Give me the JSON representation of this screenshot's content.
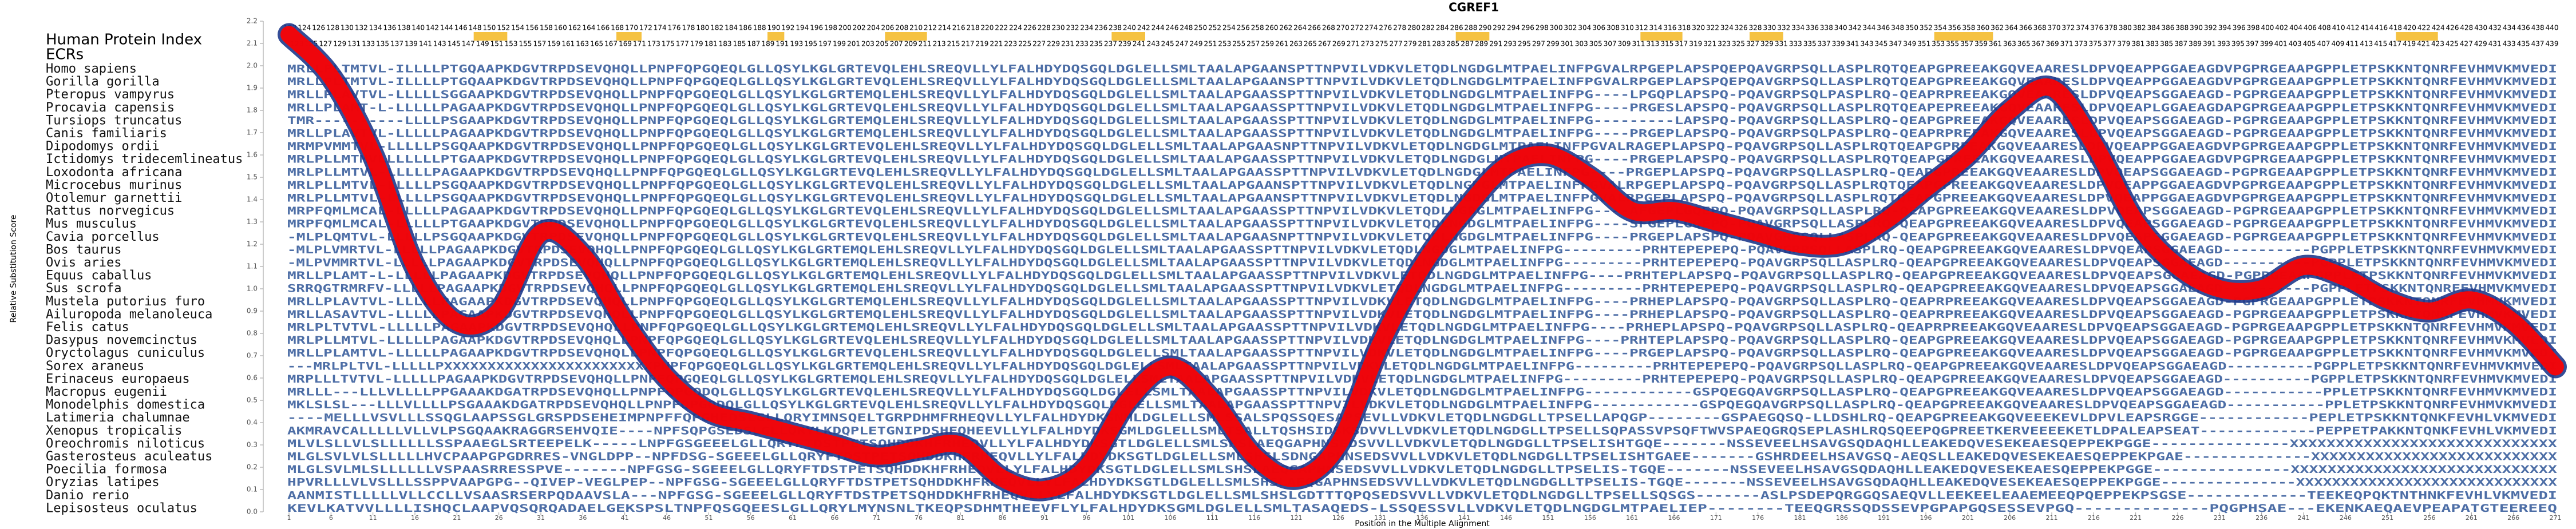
{
  "chart_data": {
    "type": "line",
    "title": "CGREF1",
    "x_label": "Position in the Multiple Alignment",
    "y_label": "Relative Substitution Score",
    "index_title": "Human Protein Index",
    "ecr_title": "ECRs",
    "ecr_color": "#f5c242",
    "ecr_regions": [
      [
        23,
        27
      ],
      [
        40,
        43
      ],
      [
        58,
        60
      ],
      [
        72,
        77
      ],
      [
        99,
        103
      ],
      [
        140,
        144
      ],
      [
        162,
        167
      ],
      [
        175,
        179
      ],
      [
        197,
        204
      ],
      [
        252,
        257
      ]
    ],
    "index_row_top": [
      122,
      124,
      126,
      128,
      130,
      132,
      134,
      136,
      138,
      140,
      142,
      144,
      146,
      148,
      150,
      152,
      154,
      156,
      158,
      160,
      162,
      164,
      166,
      168,
      170,
      172,
      174,
      176,
      178,
      180,
      182,
      184,
      186,
      188,
      190,
      192,
      194,
      196,
      198,
      200,
      202,
      204,
      206,
      208,
      210,
      212,
      214,
      216,
      218,
      220,
      222,
      224,
      226,
      228,
      230,
      232,
      234,
      236,
      238,
      240,
      242,
      244,
      246,
      248,
      250,
      252,
      254,
      256,
      258,
      260,
      262,
      264,
      266,
      268,
      270,
      272,
      274,
      276,
      278,
      280,
      282,
      284,
      286,
      288,
      290,
      292,
      294,
      296,
      298,
      300,
      302,
      304,
      306,
      308,
      310,
      312,
      314,
      316,
      318,
      320,
      322,
      324,
      326,
      328,
      330,
      332,
      334,
      336,
      338,
      340,
      342,
      344,
      346,
      348,
      350,
      352,
      354,
      356,
      358,
      360,
      362,
      364,
      366,
      368,
      370,
      372,
      374,
      376,
      378,
      380,
      382,
      384,
      386,
      388,
      390,
      392,
      394,
      396,
      398,
      400,
      402,
      404,
      406,
      408,
      410,
      412,
      414,
      416,
      418,
      420,
      422,
      424,
      426,
      428,
      430,
      432,
      434,
      436,
      438,
      440
    ],
    "index_row_bottom": [
      123,
      125,
      127,
      129,
      131,
      133,
      135,
      137,
      139,
      141,
      143,
      145,
      147,
      149,
      151,
      153,
      155,
      157,
      159,
      161,
      163,
      165,
      167,
      169,
      171,
      173,
      175,
      177,
      179,
      181,
      183,
      185,
      187,
      189,
      191,
      193,
      195,
      197,
      199,
      201,
      203,
      205,
      207,
      209,
      211,
      213,
      215,
      217,
      219,
      221,
      223,
      225,
      227,
      229,
      231,
      233,
      235,
      237,
      239,
      241,
      243,
      245,
      247,
      249,
      251,
      253,
      255,
      257,
      259,
      261,
      263,
      265,
      267,
      269,
      271,
      273,
      275,
      277,
      279,
      281,
      283,
      285,
      287,
      289,
      291,
      293,
      295,
      297,
      299,
      301,
      303,
      305,
      307,
      309,
      311,
      313,
      315,
      317,
      319,
      321,
      323,
      325,
      327,
      329,
      331,
      333,
      335,
      337,
      339,
      341,
      343,
      345,
      347,
      349,
      351,
      353,
      355,
      357,
      359,
      361,
      363,
      365,
      367,
      369,
      371,
      373,
      375,
      377,
      379,
      381,
      383,
      385,
      387,
      389,
      391,
      393,
      395,
      397,
      399,
      401,
      403,
      405,
      407,
      409,
      411,
      413,
      415,
      417,
      419,
      421,
      423,
      425,
      427,
      429,
      431,
      433,
      435,
      437,
      439
    ],
    "sequence_color": "#2f5597",
    "species": [
      {
        "name": "Homo sapiens",
        "sequence": "MRLLPLTMTVL-ILLLLPTGQAAPKDGVTRPDSEVQHQLLPNPFQPGQEQLGLLQSYLKGLGRTEVQLEHLSREQVLLYLFALHDYDQSGQLDGLELLSMLTAALAPGAANSPTTNPVILVDKVLETQDLNGDGLMTPAELINFPGVALRPGEPLAPSPQEPQAVGRPSQLLASPLRQTQEAPGPREEAKGQVEAARESLDPVQEAPPGGAEAGDVPGPRGEAAPGPPLETPSKKNTQNRFEVHMVKMVEDI"
      },
      {
        "name": "Gorilla gorilla",
        "sequence": "MRLLPLTMTVL-ILLLLPTGQAAPKDGVTRPDSEVQHQLLPNPFQPGQEQLGLLQSYLKGLGRTEVQLEHLSREQVLLYLFALHDYDQSGQLDGLELLSMLTAALAPGAANSPTTNPVILVDKVLETQDLNGDGLMTPAELINFPGVALRPGEPLAPSPQEPQAVGRPSQLLASPLRQTQEAPGPREEAKGQVEAARESLDPVQEAPPGGAEAGDVPGPRGEAAPGPPLETPSKKNTQNRFEVHMVKMVEDI"
      },
      {
        "name": "Pteropus vampyrus",
        "sequence": "MRLLPLAVTVL-LLLLLSGGAAPKDGVTRPDSEVQHQLLPNPFQPGQEQLGLLQSYLKGLGRTEMQLEHLSREQVLLYLFALHDYDQSGQLDGLELLSMLTAALAPGAASSPTTNPVILVDKVLETQDLNGDGLMTPAELINFPG----LPGQPLAPSPQ-PQAVGRPSQLPASPLRQ-QEAPRPREEAKGQVEAARESLDPVQEAPSGGAEAGD-PGPRGEAAPGPPLETPSKKNTQNRFEVHMVKMVEDI"
      },
      {
        "name": "Procavia capensis",
        "sequence": "MRLLPLAMT-L-LLLLLPAGAAPKDGVTRPDSEVQHQLLPNPFQPGQEQLGLLQSYLKGLGRTEVQLEHLSREQVLLYLFALHDYDQSGQLDGLELLSMLTAALAPGAASSPTTNPVILVDKVLETQDLNGDGLMTPAELINFPG----PRGESLAPSPQ-PQAVGRPSQLLASPLRQTQEAPEPREEAKGQVEAARESLDPVQEAPLGGAEAGDAPGPRGEAAPGPPLETPSKKNTQNRFEVHMVKMVEDI"
      },
      {
        "name": "Tursiops truncatus",
        "sequence": "TMR----------LLLLPSGAAPKDGVTRPDSEVQHQLLPNPFQPGQEQLGLLQSYLKGLGRTEMQLEHLSREQVLLYLFALHDYDQSGQLDGLELLSMLTAALAPGAASSPTTNPVILVDKVLETQDLNGDGLMTPAELINFPG---------LAPSPQ-PQAVGRPSQLLASPLRQ-QEAPGPREEAKGQVEAARESLDPVQEAPSGGAEAGD-PGPRGEAAPGPPLETPSKKNTQNRFEVHMVKMVEDI"
      },
      {
        "name": "Canis familiaris",
        "sequence": "MRLLPLAVTVL-LLLLLPAGAAPKDGVTRPDSEVQHQLLPNPFQPGQEQLGLLQSYLKGLGRTEMQLEHLSREQVLLYLFALHDYDQSGQLDGLELLSMLTAALAPGAASSPTTNPVILVDKVLETQDLNGDGLMTPAELINFPG----PRGEPLAPSPQ-PQAVGRPSQLPASPLRQ-QEAPRPREEAKGQVEAARESLDPVQEAPSGGAEAGD-PGPRGEAAPGPPLETPSKKNTQNRFEVHMVKMVEDI"
      },
      {
        "name": "Dipodomys ordii",
        "sequence": "MRMPVMMTVL-LLLLLPSGQAAPKDGVTRPDSEVQHQLLPNPFQPGQEQLGLLQSYLKGLGRTEVQLEHLSREQVLLYLFALHDYDQSGQLDGLELLSMLTAALAPGAASNPTTNPVILVDKVLETQDLNGDGLMTPAELINFPGVALRAGEPLAPSPQ-PQAVGRPSQLLASPLRQTQEAPGPREEAKGQVEAARESLDPVQEAPPGGAEAGDVPGPRGEAAPGPPLETPSKKNTQNRFEVHMVKMVEDI"
      },
      {
        "name": "Ictidomys tridecemlineatus",
        "sequence": "MRLPLLMTMVLLLLLLLPTGAAPKDGVTRPDSEVQHQLLPNPFQPGQEQLGLLQSYLKGLGRTEVQLEHLSREQVLLYLFALHDYDQSGQLDGLELLSMLTAALAPGAASSPTTNPVILVDKVLETQDLNGDGLMTPAELINFPG----PRGEPLAPSPQ-PQAVGRPSQLLASPLRQTQEAPGPREEAKGQVEAARESLDPVQEAPPGGAEAGDVPGPRGEAAPGPPLETPSKKNTQNRFEVHMVKMVEDI"
      },
      {
        "name": "Loxodonta africana",
        "sequence": "MRLPLLMTVL-LLLLLPAGAAPKDGVTRPDSEVQHQLLPNPFQPGQEQLGLLQSYLKGLGRTEVQLEHLSREQVLLYLFALHDYDQSGQLDGLELLSMLTAALAPGAASSPTTNPVILVDKVLETQDLNGDGLMTPAELINFPG----PRGEPLAPSPQ-PQAVGRPSQLLASPLRQ-QEAPGPREEAKGQVEAARESLDPVQEAPSGGAEAGD-PGPRGEAAPGPPLETPSKKNTQNRFEVHMVKMVEDI"
      },
      {
        "name": "Microcebus murinus",
        "sequence": "MRLPLLMTVL-LLLLLPSGQAAPKDGVTRPDSEVQHQLLPNPFQPGQEQLGLLQSYLKGLGRTEVQLEHLSREQVLLYLFALHDYDQSGQLDGLELLSMLTAALAPGAANSPTTNPVILVDKVLETQDLNGDGLMTPAELINFPGVALRPGEPLAPSPQ-PQAVGRPSQLLASPLRQTQEAPGPREEAKGQVEAARESLDPVQEAPPGGAEAGDVPGPRGEAAPGPPLETPSKKNTQNRFEVHMVKMVEDI"
      },
      {
        "name": "Otolemur garnettii",
        "sequence": "MRLPLLMTVL-LLLLLPSGQAAPKDGVTRPDSEVQHQLLPNPFQPGQEQLGLLQSYLKGLGRTEVQLEHLSREQVLLYLFALHDYDQSGQLDGLELLSMLTAALAPGAANSPTTNPVILVDKVLETQDLNGDGLMTPAELINFPGVALRPGEPLAPSPQ-PQAVGRPSQLLASPLRQTQEAPGPREEAKGQVEAARESLDPVQEAPPGGAEAGDVPGPRGEAAPGPPLETPSKKNTQNRFEVHMVKMVEDI"
      },
      {
        "name": "Rattus norvegicus",
        "sequence": "MRPFQMLMCAL-LLLLLPAGAAPKDGVTRPDSEVQHQLLPNPFQPGQEQLGLLQSYLKGLGRTEVQLEHLSREQVLLYLFALHDYDQSGQLDGLELLSMLTAALAPGAASSPTTNPVILVDKVLETQDLNGDGLMTPAELINFPG----AFGEPLGQEPQ-PQAVGRPSQLLASPLRQ-QEAPGPREEAKGQVEAARESLDPVQEAPSGGAEAGD-PGPRGEAAPGPPLETPSKKNTQNRFEVHMVKMVEDI"
      },
      {
        "name": "Mus musculus",
        "sequence": "MRPFQMLMCAL-LLLLLPTGAAPKDGVTRPDSEVQHQLLPNPFQPGQEQLGLLQSYLKGLGRTEVQLEHLSREQVLLYLFALHDYDQSGQLDGLELLSMLTAALAPGAASSPTTNPVILVDKVLETQDLNGDGLMTPAELINFPG----SFGEPLGQEPQ-PQAVGRPSQLLASPLRQ-QEAPGPREEAKGQVEAARESLDPVQEAPSGGAEAGD-PGPRGEAAPGPPLETPSKKNTQNRFEVHMVKMVEDI"
      },
      {
        "name": "Cavia porcellus",
        "sequence": "-MLPLQMTVL-LLLLLPSGQAAPKDGVTRPDSEVQHQLLPNPFQPGQEQLGLLQSYLKGLGRTEVQLEHLSREQVLLYLFALHDYDQSGQLDGLELLSMLTAALAPGAASNPTTNPVILVDKVLETQDLNGDGLMTPAELINFPG----PRGEPLAPSPQ-PQAVGRPSQLLASPLRQ-QEAPGPREEAKGQVEAARESLDPVQEAPSGGAEAGD-PGPRGEAAPGPPLETPSKKNTQNRFEVHMVKMVEDI"
      },
      {
        "name": "Bos taurus",
        "sequence": "-MLPLVMRTVL-LLLLLPAGAAPKDGVTRPDSEVQHQLLPNPFQPGQEQLGLLQSYLKGLGRTEMQLEHLSREQVLLYLFALHDYDQSGQLDGLELLSMLTAALAPGAASSPTTNPVILVDKVLETQDLNGDGLMTPAELINFPG---------PRHTEPEPEPQ-PQAVGRPSQLLASPLRQ-QEAPGPREEAKGQVEAARESLDPVQEAPSGGAEAGD----------PGPPLETPSKKNTQNRFEVHMVKMVEDI"
      },
      {
        "name": "Ovis aries",
        "sequence": "-MLPVMMRTVL-LLLLLPAGAAPKDGVTRPDSEVQHQLLPNPFQPGQEQLGLLQSYLKGLGRTEMQLEHLSREQVLLYLFALHDYDQSGQLDGLELLSMLTAALAPGAASSPTTNPVILVDKVLETQDLNGDGLMTPAELINFPG---------PRHTEPEPEPQ-PQAVGRPSQLLASPLRQ-QEAPGPREEAKGQVEAARESLDPVQEAPSGGAEAGD----------PGPPLETPSKKNTQNRFEVHMVKMVEDI"
      },
      {
        "name": "Equus caballus",
        "sequence": "MRLLPLAMT-L-LLLLLPAGAAPKDGVTRPDSEVQHQLLPNPFQPGQEQLGLLQSYLKGLGRTEMQLEHLSREQVLLYLFALHDYDQSGQLDGLELLSMLTAALAPGAASSPTTNPVILVDKVLETQDLNGDGLMTPAELINFPG----PRHTEPLAPSPQ-PQAVGRPSQLLASPLRQ-QEAPGPREEAKGQVEAARESLDPVQEAPSGGAEAGD-PGPRGEAAPGPPLETPSKKNTQNRFEVHMVKMVEDI"
      },
      {
        "name": "Sus scrofa",
        "sequence": "SRRQGTRMRFV-LLLLLPAGAAPKDGVTRPDSEVQHQLLPNPFQPGQEQLGLLQSYLKGLGRTEMQLEHLSREQVLLYLFALHDYDQSGQLDGLELLSMLTAALAPGAASSPTTNPVILVDKVLETQDLNGDGLMTPAELINFPG---------PRHTEPEPEPQ-PQAVGRPSQLLASPLRQ-QEAPGPREEAKGQVEAARESLDPVQEAPSGGAEAGD----------PGPPLETPSKKNTQNRFEVHMVKMVEDI"
      },
      {
        "name": "Mustela putorius furo",
        "sequence": "MRLLPLAVTVL-LLLLLPAGAAPKDGVTRPDSEVQHQLLPNPFQPGQEQLGLLQSYLKGLGRTEMQLEHLSREQVLLYLFALHDYDQSGQLDGLELLSMLTAALAPGAASSPTTNPVILVDKVLETQDLNGDGLMTPAELINFPG----PRHEPLAPSPQ-PQAVGRPSQLLASPLRQ-QEAPRPREEAKGQVEAARESLDPVQEAPSGGAEAGD-PGPRGEAAPGPPLETPSKKNTQNRFEVHMVKMVEDI"
      },
      {
        "name": "Ailuropoda melanoleuca",
        "sequence": "MRLLASAVTVL-LLLLLPAGAAPKDGVTRPDSEVQHQLLPNPFQPGQEQLGLLQSYLKGLGRTEMQLEHLSREQVLLYLFALHDYDQSGQLDGLELLSMLTAALAPGAASSPTTNPVILVDKVLETQDLNGDGLMTPAELINFPG----PRHEPLAPSPQ-PQAVGRPSQLLASPLRQ-QEAPRPREEAKGQVEAARESLDPVQEAPSGGAEAGD-PGPRGEAAPGPPLETPSKKNTQNRFEVHMVKMVEDI"
      },
      {
        "name": "Felis catus",
        "sequence": "MRLPLTVTVL-LLLLLPAGAAPKDGVTRPDSEVQHQLLPNPFQPGQEQLGLLQSYLKGLGRTEMQLEHLSREQVLLYLFALHDYDQSGQLDGLELLSMLTAALAPGAASSPTTNPVILVDKVLETQDLNGDGLMTPAELINFPG----PRHEPLAPSPQ-PQAVGRPSQLLASPLRQ-QEAPRPREEAKGQVEAARESLDPVQEAPSGGAEAGD-PGPRGEAAPGPPLETPSKKNTQNRFEVHMVKMVEDI"
      },
      {
        "name": "Dasypus novemcinctus",
        "sequence": "MRLPLLMTVL-LLLLLPAGAAPKDGVTRPDSEVQHQLLPNPFQPGQEQLGLLQSYLKGLGRTEVQLEHLSREQVLLYLFALHDYDQSGQLDGLELLSMLTAALAPGAASSPTTNPVILVDKVLETQDLNGDGLMTPAELINFPG----PRHTEPLAPSPQ-PQAVGRPSQLLASPLRQ-QEAPGPREEAKGQVEAARESLDPVQEAPSGGAEAGD-PGPRGEAAPGPPLETPSKKNTQNRFEVHMVKMVEDI"
      },
      {
        "name": "Oryctolagus cuniculus",
        "sequence": "MRLLPLAMTVL-LLLLLPAGAAPKDGVTRPDSEVQHQLLPNPFQPGQEQLGLLQSYLKGLGRTEVQLEHLSREQVLLYLFALHDYDQSGQLDGLELLSMLTAALAPGAASSPTTNPVILVDKVLETQDLNGDGLMTPAELINFPG----PRGEPLAPSPQ-PQAVGRPSQLLASPLRQ-QEAPGPREEAKGQVEAARESLDPVQEAPSGGAEAGD-PGPRGEAAPGPPLETPSKKNTQNRFEVHMVKMVEDI"
      },
      {
        "name": "Sorex araneus",
        "sequence": "---MRLPLTVL-LLLLLPXXXXXXXXXXXXXXXXXXXXXXXXPNPFQPGQEQLGLLQSYLKGLGRTEMQLEHLSREQVLLYLFALHDYDQSGQLDGLELLSMLTAALAPGAASSPTTNPVILVDKVLETQDLNGDGLMTPAELINFPG---------PRHTEPEPEPQ-PQAVGRPSQLLASPLRQ-QEAPGPREEAKGQVEAARESLDPVQEAPSGGAEAGD----------PGPPLETPSKKNTQNRFEVHMVKMVEDI"
      },
      {
        "name": "Erinaceus europaeus",
        "sequence": "MRPLLLTVTVL-LLLLLPAGAAPKDGVTRPDSEVQHQLLPNPFQPGQEQLGLLQSYLKGLGRTEMQLEHLSREQVLLYLFALHDYDQSGQLDGLELLSMLTAALAPGAASSPTTNPVILVDKVLETQDLNGDGLMTPAELINFPG---------PRHTEPEPEPQ-PQAVGRPSQLLASPLRQ-QEAPGPREEAKGQVEAARESLDPVQEAPSGGAEAGD----------PGPPLETPSKKNTQNRFEVHMVKMVEDI"
      },
      {
        "name": "Macropus eugenii",
        "sequence": "MRLLL---LLLVLLLLPPGAAAKDGATRPDSEVQHQLLPNPFQPGQDQLGLLQSYLKGLGRTEVQLEHLSREQVLLYLFALHDYDQSGQLDGLELLSMLTAALAPGAASSPTTNPVILVDKVLETQDLNGDGLMTPAELINFPG------------GSPQEGQAVGRPSQLLASPLRQ-QEAPGPREEAKGQVEAARESLDPVQEAPSGGAEAGD-----------PPLETPSKKNTQNRFEVHMVKMVEDI"
      },
      {
        "name": "Monodelphis domestica",
        "sequence": "MKLSLSL---LLLVLLLLPSGAAAKDGATRPDSEVQHQLLPNPFQPGQDQLGLLQSYLKGLGRTEVQLEHLSREQVLLYLFALHDYDQSGQLDGLELLSMLTAALAPGAASSPTTNPVILVDKVLETQDLNGDGLMTPAELINFPG------------GSPQEGQAVGRPSQLLASPLRQ-QEAPGPREEAKGQVEAARESLDPVQEAPSGGAEAGD-----------PPLETPSKKNTQNRFEVHMVKMVEDI"
      },
      {
        "name": "Latimeria chalumnae",
        "sequence": "----MELLLVSVLLLSSQGLAAPSSGLGRSPDSEHEIMPNPFFQPGHEDSLGLLQRYIMNSQELTGRPDHMFRHEQVLLYLFALHDYDKSNMLDGLELLSMLSSALSPQSSQESAPSEVLLVDKVLETQDLNGDGLLTPSELLAPQGP--------GSPAEGQSQ-LLDSHLRQ-QEAPGPREEAKGQVEEEKEVLDPVLEAPSRGGE------------PEPLETPSKKNTQNKFEVHLVKMVEDI"
      },
      {
        "name": "Xenopus tropicalis",
        "sequence": "AKMRAVCALLLLLVLLVLPSGQAAKRAGGRSEHVQIE----NPFSQPGSEDSLGLLQRYLKDQPLETGNIPDSHFQHEEVLLYLFALHDYDKSGMLDGLELLSMLTSALLTQSHSIDSKSDVVLLVDKVLETQDLNGDGLLTPSELLSQPASSVPSQFTWVSPAEQGRQSEPLASHLRQSQEEPQGPREETKERVEEEEKETLDPALEAPSEAT-------------PEPPETPAKKNTQNKFEVHLVKMVEDI"
      },
      {
        "name": "Oreochromis niloticus",
        "sequence": "MLVLSLLVLSLLLLLLSSPAAEGLSRTEEPELK-----LNPFGSGEEELGLLQRYFTDSTPETSQHDDKHFRHEQVLLYLFALHDYDKSGTLDGLELLSMLSHSLAEQGAPHNSEDSVVLLVDKVLETQDLNGDGLLTPSELISHTGQE-------NSSEVEELHSAVGSQDAQHLLEAKEDQVESEKEAESQEPPEKPGGE---------------XXXXXXXXXXXXXXXXXXXXXXXXXXXXX"
      },
      {
        "name": "Gasterosteus aculeatus",
        "sequence": "MLGLSVLVLSLLLLLHVCPAAPGPGDRRES-VNGLDPP--NPFDSG-SGEEELGLLQRYFTDSTPETSQHDDKHFRHEQVLLYLFALHDYDKSGTLDGLELLSMLSHSLSDNGAPHNSEDSVVLLVDKVLETQDLNGDGLLTPSELISHTGAEE-------GSHRDEELHSAVGSQ-AEQSLLEAKEDQVESEKEAESQEPPEKPGAE--------------XXXXXXXXXXXXXXXXXXXXXXXXXXX"
      },
      {
        "name": "Poecilia formosa",
        "sequence": "MLGLSVLMLSLLLLLLVSPAASRRESSPVE-------NPFGSG-SGEEELGLLQRYFTDSTPETSQHDDKHFRHEQVLLYLFALHDYDKSGTLDGLELLSMLSHSLAEQGAPHNSEDSVVLLVDKVLETQDLNGDGLLTPSELIS-TGQE-------NSSEVEELHSAVGSQDAQHLLEAKEDQVESEKEAESQEPPEKPGGE---------------XXXXXXXXXXXXXXXXXXXXXXXXXXXXX"
      },
      {
        "name": "Oryzias latipes",
        "sequence": "HPVRLLLVLVSLLLSSPPVAAPGPG--QIVEP-VEGLPEP--NPFGSG-SGEEELGLLQRYFTDSTPETSQHDDKHFRHEQVLLYLFALHDYDKSGTLDGLELLSMLSHSLAEQGAPHNSEDSVVLLVDKVLETQDLNGDGLLTPSELIS-TGQE-------NSSEVEELHSAVGSQDAQHLLEAKEDQVESEKEAESQEPPEKPGGE---------------XXXXXXXXXXXXXXXXXXXXXXXXXXXXX"
      },
      {
        "name": "Danio rerio",
        "sequence": "AANMISTLLLLLVLLCCLLVSAASRSERPQDAAVSLA---NPFGSG-SGEEELGLLQRYFTDSTPETSQHDDKHFRHEQVLLYLFALHDYDKSGTLDGLELLSMLSHSLGDTTTQPQSEDSVVLLVDKVLETQDLNGDGLLTPSELLSQSGS-------ASLPSDEPQRGGQSAEQVLLEEKEELEAAEMEEQPQEPPEKPSGSE-------------TEEKEQPQKTNTHNKFEVHLVKMVEDI"
      },
      {
        "name": "Lepisosteus oculatus",
        "sequence": "KEVLKATVVLLLLISHQCLAAPVQSQRQADAELGEKSPSLTNPFQSGQEESLGLLQRYLMYNSNLTKEQPSDHMTHEEVFLYLFALHDYDKSGMLDGLELLSMLTASAQEDS-LSSQESSVLLVDKVLETQDLNGDGLMTPAELIEP--------TEEQGRSSQDSSEVPGPAPGQSESSEVPGQ--------------PQGPHSAE---EKENKAEQAEVPEAPATGTEEREEQ"
      }
    ],
    "x": [
      1,
      6,
      11,
      16,
      21,
      26,
      31,
      36,
      41,
      46,
      51,
      56,
      61,
      66,
      71,
      76,
      81,
      86,
      91,
      96,
      101,
      106,
      111,
      116,
      121,
      126,
      131,
      136,
      141,
      146,
      151,
      156,
      161,
      166,
      171,
      176,
      181,
      186,
      191,
      196,
      201,
      206,
      211,
      216,
      221,
      226,
      231,
      236,
      241,
      246,
      251,
      256,
      261,
      266,
      271
    ],
    "series": [
      {
        "name": "Relative Substitution Score",
        "color": "#ff0000",
        "outline_color": "#1f3a8c",
        "values": [
          2.14,
          1.95,
          1.6,
          1.1,
          0.85,
          0.9,
          1.25,
          1.15,
          0.85,
          0.6,
          0.45,
          0.4,
          0.35,
          0.3,
          0.25,
          0.28,
          0.3,
          0.15,
          0.1,
          0.2,
          0.5,
          0.65,
          0.5,
          0.25,
          0.15,
          0.3,
          0.75,
          1.1,
          1.35,
          1.55,
          1.6,
          1.5,
          1.35,
          1.35,
          1.3,
          1.25,
          1.2,
          1.2,
          1.3,
          1.45,
          1.6,
          1.8,
          1.9,
          1.65,
          1.3,
          1.1,
          1.0,
          1.0,
          1.1,
          1.05,
          0.95,
          0.9,
          0.95,
          0.85,
          0.65
        ]
      }
    ],
    "xlim": [
      1,
      271
    ],
    "xticks": [
      1,
      6,
      11,
      16,
      21,
      26,
      31,
      36,
      41,
      46,
      51,
      56,
      61,
      66,
      71,
      76,
      81,
      86,
      91,
      96,
      101,
      106,
      111,
      116,
      121,
      126,
      131,
      136,
      141,
      146,
      151,
      156,
      161,
      166,
      171,
      176,
      181,
      186,
      191,
      196,
      201,
      206,
      211,
      216,
      221,
      226,
      231,
      236,
      241,
      246,
      251,
      256,
      261,
      266,
      271
    ],
    "ylim": [
      0,
      2.2
    ],
    "yticks": [
      {
        "value": 0,
        "label": "0.0"
      },
      0.1,
      0.2,
      0.3,
      0.4,
      0.5,
      0.6,
      0.7,
      0.8,
      0.9,
      {
        "value": 1,
        "label": "1.0"
      },
      1.1,
      1.2,
      1.3,
      1.4,
      1.5,
      1.6,
      1.7,
      1.8,
      1.9,
      {
        "value": 2,
        "label": "2.0"
      },
      2.1,
      2.2
    ]
  }
}
